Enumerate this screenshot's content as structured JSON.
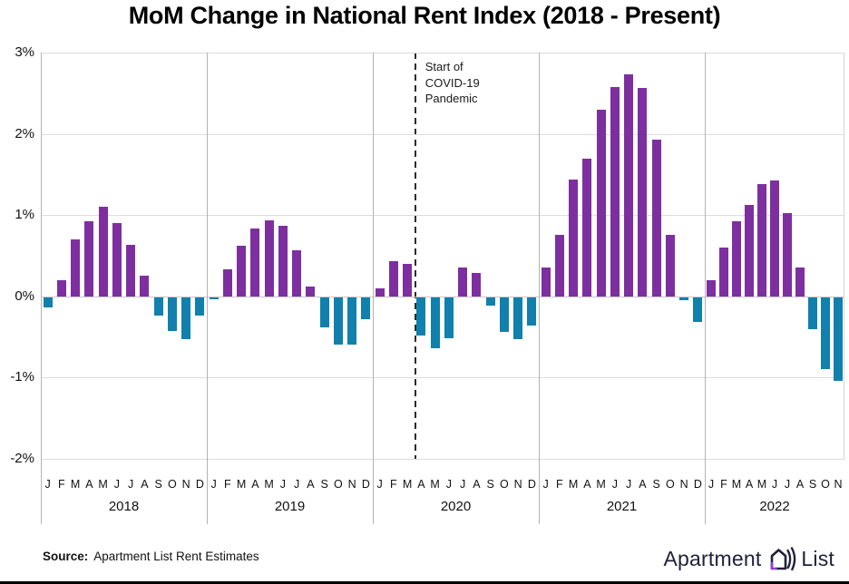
{
  "title": "MoM Change in National Rent Index (2018 - Present)",
  "covid_annotation": {
    "line1": "Start of",
    "line2": "COVID-19",
    "line3": "Pandemic"
  },
  "footer": {
    "source_label": "Source:",
    "source_text": "Apartment List Rent Estimates",
    "logo_text_1": "Apartment",
    "logo_text_2": "List"
  },
  "colors": {
    "positive_bar": "#7d2fa0",
    "negative_bar": "#1180ad",
    "gridline": "#dcdcdc",
    "panel_separator": "#b3b3b3",
    "covid_line": "#2b2b2b",
    "logo_navy": "#21213b",
    "logo_purple": "#8e3fd0"
  },
  "chart_data": {
    "type": "bar",
    "title": "MoM Change in National Rent Index (2018 - Present)",
    "ylim": [
      -2,
      3
    ],
    "ytick_values": [
      3,
      2,
      1,
      0,
      -1,
      -2
    ],
    "ytick_labels": [
      "3%",
      "2%",
      "1%",
      "0%",
      "-1%",
      "-2%"
    ],
    "grid": "horizontal gridlines on, vertical separators between year panels",
    "legend": "none; positive months purple, negative months teal",
    "annotation": {
      "text": "Start of COVID-19 Pandemic",
      "type": "dashed-vertical-line",
      "location": "between March and April 2020"
    },
    "groups": [
      {
        "year": "2018",
        "months": [
          "J",
          "F",
          "M",
          "A",
          "M",
          "J",
          "J",
          "A",
          "S",
          "O",
          "N",
          "D"
        ],
        "values": [
          -0.12,
          0.2,
          0.7,
          0.92,
          1.1,
          0.9,
          0.63,
          0.25,
          -0.22,
          -0.42,
          -0.52,
          -0.22
        ]
      },
      {
        "year": "2019",
        "months": [
          "J",
          "F",
          "M",
          "A",
          "M",
          "J",
          "J",
          "A",
          "S",
          "O",
          "N",
          "D"
        ],
        "values": [
          -0.03,
          0.33,
          0.62,
          0.84,
          0.93,
          0.87,
          0.57,
          0.12,
          -0.37,
          -0.58,
          -0.58,
          -0.27
        ]
      },
      {
        "year": "2020",
        "months": [
          "J",
          "F",
          "M",
          "A",
          "M",
          "J",
          "J",
          "A",
          "S",
          "O",
          "N",
          "D"
        ],
        "values": [
          0.1,
          0.43,
          0.4,
          -0.47,
          -0.63,
          -0.5,
          0.36,
          0.29,
          -0.1,
          -0.43,
          -0.52,
          -0.35
        ],
        "covid_line_after_month_index": 2
      },
      {
        "year": "2021",
        "months": [
          "J",
          "F",
          "M",
          "A",
          "M",
          "J",
          "J",
          "A",
          "S",
          "O",
          "N",
          "D"
        ],
        "values": [
          0.36,
          0.76,
          1.44,
          1.69,
          2.3,
          2.58,
          2.73,
          2.57,
          1.93,
          0.76,
          -0.04,
          -0.3
        ]
      },
      {
        "year": "2022",
        "months": [
          "J",
          "F",
          "M",
          "A",
          "M",
          "J",
          "J",
          "A",
          "S",
          "O",
          "N"
        ],
        "values": [
          0.2,
          0.6,
          0.92,
          1.12,
          1.38,
          1.43,
          1.02,
          0.35,
          -0.39,
          -0.88,
          -1.03
        ]
      }
    ]
  }
}
